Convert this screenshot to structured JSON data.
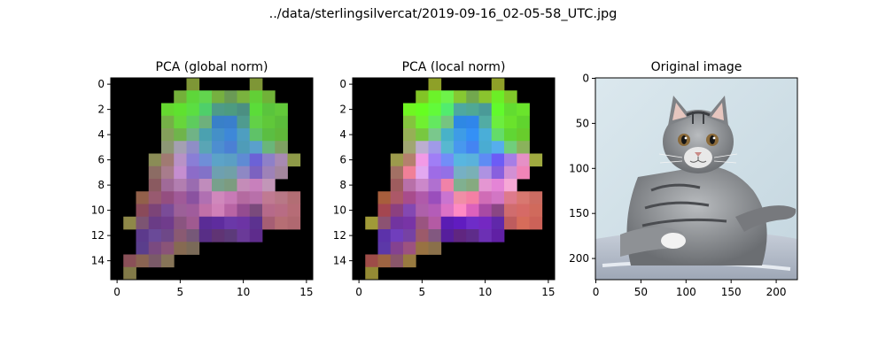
{
  "figure": {
    "suptitle": "../data/sterlingsilvercat/2019-09-16_02-05-58_UTC.jpg"
  },
  "chart_data": [
    {
      "type": "heatmap",
      "title": "PCA (global norm)",
      "xlabel": "",
      "ylabel": "",
      "xlim": [
        -0.5,
        15.5
      ],
      "ylim": [
        15.5,
        -0.5
      ],
      "xticks": [
        0,
        5,
        10,
        15
      ],
      "yticks": [
        0,
        2,
        4,
        6,
        8,
        10,
        12,
        14
      ],
      "grid": false,
      "background": "#000000",
      "rows": [
        [
          "#000000",
          "#000000",
          "#000000",
          "#000000",
          "#000000",
          "#000000",
          "#7e9636",
          "#000000",
          "#000000",
          "#000000",
          "#000000",
          "#7e9636",
          "#000000",
          "#000000",
          "#000000",
          "#000000"
        ],
        [
          "#000000",
          "#000000",
          "#000000",
          "#000000",
          "#000000",
          "#74b03a",
          "#5ed63a",
          "#62d54e",
          "#76b040",
          "#6a9a55",
          "#7ab33e",
          "#62cf36",
          "#70b238",
          "#000000",
          "#000000",
          "#000000"
        ],
        [
          "#000000",
          "#000000",
          "#000000",
          "#000000",
          "#65d830",
          "#5fe12f",
          "#5bde42",
          "#4fcf6a",
          "#4e9b88",
          "#4d9b80",
          "#4b8f82",
          "#5bdc39",
          "#5ac43d",
          "#62c93a",
          "#000000",
          "#000000"
        ],
        [
          "#000000",
          "#000000",
          "#000000",
          "#000000",
          "#75b047",
          "#67d63b",
          "#5ecc5e",
          "#6eb07c",
          "#3980c8",
          "#3a7fcc",
          "#4f9b8f",
          "#62d147",
          "#60c83a",
          "#5bbd3b",
          "#000000",
          "#000000"
        ],
        [
          "#000000",
          "#000000",
          "#000000",
          "#000000",
          "#84a05b",
          "#6fb44b",
          "#70b386",
          "#4ba1b0",
          "#4490c8",
          "#3e88d8",
          "#4e9ec0",
          "#5fc268",
          "#5bbe42",
          "#60b83a",
          "#000000",
          "#000000"
        ],
        [
          "#000000",
          "#000000",
          "#000000",
          "#000000",
          "#8d9775",
          "#a4a0b2",
          "#8f8ec6",
          "#5aa5b5",
          "#4d8ed0",
          "#4b80d4",
          "#4f9cb8",
          "#5aa0cc",
          "#6ab67a",
          "#7ea062",
          "#000000",
          "#000000"
        ],
        [
          "#000000",
          "#000000",
          "#000000",
          "#8a8c56",
          "#a07a72",
          "#b892c6",
          "#8a7ed6",
          "#6f8ed8",
          "#5ca3c8",
          "#5b9fc4",
          "#5f8bd4",
          "#6c62d6",
          "#8e80c8",
          "#a88ab2",
          "#8e9a48",
          "#000000"
        ],
        [
          "#000000",
          "#000000",
          "#000000",
          "#8c6c64",
          "#a87c8c",
          "#c58ed0",
          "#8c6cc8",
          "#8272c8",
          "#6ea0b0",
          "#71a0a8",
          "#8e88c4",
          "#7c62c0",
          "#9e82b8",
          "#a4869e",
          "#000000",
          "#000000"
        ],
        [
          "#000000",
          "#000000",
          "#000000",
          "#8a5a60",
          "#a06a98",
          "#b27eb0",
          "#9a6cb0",
          "#c08cbc",
          "#78a08c",
          "#7c9c80",
          "#c48cb8",
          "#c880bc",
          "#c296b8",
          "#000000",
          "#000000",
          "#000000"
        ],
        [
          "#000000",
          "#000000",
          "#92604a",
          "#985a70",
          "#944e80",
          "#a05a98",
          "#8a52a0",
          "#b070b2",
          "#d088bc",
          "#c87ab6",
          "#b46aa0",
          "#b870aa",
          "#c07a92",
          "#b87886",
          "#b26e74",
          "#000000"
        ],
        [
          "#000000",
          "#000000",
          "#8a4a5a",
          "#7c4478",
          "#7a4c98",
          "#9c6098",
          "#a05c9c",
          "#c070a8",
          "#d080b8",
          "#b864a4",
          "#944c90",
          "#7a4a7c",
          "#b66a8a",
          "#b86c84",
          "#b66c76",
          "#000000"
        ],
        [
          "#000000",
          "#8e8848",
          "#7c5472",
          "#6a3c86",
          "#703c8c",
          "#8a5480",
          "#a05a90",
          "#5a2c96",
          "#5e2c9e",
          "#6a38a8",
          "#6c34a4",
          "#5c3290",
          "#a65e74",
          "#b66e74",
          "#b06870",
          "#000000"
        ],
        [
          "#000000",
          "#000000",
          "#5c3a8c",
          "#6a4a98",
          "#6e4888",
          "#8a5a72",
          "#765878",
          "#582e86",
          "#603474",
          "#5c3a7a",
          "#6a3a98",
          "#5e2c8c",
          "#000000",
          "#000000",
          "#000000",
          "#000000"
        ],
        [
          "#000000",
          "#000000",
          "#5a3e8c",
          "#7a4a80",
          "#8a5478",
          "#866a52",
          "#7a6a58",
          "#000000",
          "#000000",
          "#000000",
          "#000000",
          "#000000",
          "#000000",
          "#000000",
          "#000000",
          "#000000"
        ],
        [
          "#000000",
          "#8a5058",
          "#8a6452",
          "#7a5a68",
          "#867458",
          "#000000",
          "#000000",
          "#000000",
          "#000000",
          "#000000",
          "#000000",
          "#000000",
          "#000000",
          "#000000",
          "#000000",
          "#000000"
        ],
        [
          "#000000",
          "#827a48",
          "#000000",
          "#000000",
          "#000000",
          "#000000",
          "#000000",
          "#000000",
          "#000000",
          "#000000",
          "#000000",
          "#000000",
          "#000000",
          "#000000",
          "#000000",
          "#000000"
        ]
      ]
    },
    {
      "type": "heatmap",
      "title": "PCA (local norm)",
      "xlabel": "",
      "ylabel": "",
      "xlim": [
        -0.5,
        15.5
      ],
      "ylim": [
        15.5,
        -0.5
      ],
      "xticks": [
        0,
        5,
        10,
        15
      ],
      "yticks": [
        0,
        2,
        4,
        6,
        8,
        10,
        12,
        14
      ],
      "grid": false,
      "background": "#000000",
      "rows": [
        [
          "#000000",
          "#000000",
          "#000000",
          "#000000",
          "#000000",
          "#000000",
          "#8ea028",
          "#000000",
          "#000000",
          "#000000",
          "#000000",
          "#8ea028",
          "#000000",
          "#000000",
          "#000000",
          "#000000"
        ],
        [
          "#000000",
          "#000000",
          "#000000",
          "#000000",
          "#000000",
          "#82c426",
          "#6cf22a",
          "#6ef24a",
          "#86c832",
          "#72a84e",
          "#8ac42e",
          "#6cee26",
          "#80c82a",
          "#000000",
          "#000000",
          "#000000"
        ],
        [
          "#000000",
          "#000000",
          "#000000",
          "#000000",
          "#70f622",
          "#66fe20",
          "#62fa3a",
          "#52ec6e",
          "#4ea8a0",
          "#50a894",
          "#4a9a98",
          "#62fa2c",
          "#62dc30",
          "#6ae42c",
          "#000000",
          "#000000"
        ],
        [
          "#000000",
          "#000000",
          "#000000",
          "#000000",
          "#84c43e",
          "#70f030",
          "#64e860",
          "#76c480",
          "#2e88e4",
          "#3086ea",
          "#52aca4",
          "#6cee3e",
          "#6ae22c",
          "#60d42e",
          "#000000",
          "#000000"
        ],
        [
          "#000000",
          "#000000",
          "#000000",
          "#000000",
          "#96b056",
          "#78c840",
          "#7ac88c",
          "#48b2c8",
          "#3e9ce6",
          "#3490f6",
          "#4aaed8",
          "#64dc6a",
          "#60d634",
          "#68cc2c",
          "#000000",
          "#000000"
        ],
        [
          "#000000",
          "#000000",
          "#000000",
          "#000000",
          "#a0a672",
          "#bcaed0",
          "#a09ae8",
          "#58b8d0",
          "#4898ee",
          "#4484f2",
          "#4aacd2",
          "#56aeec",
          "#70ce7c",
          "#8ab25c",
          "#000000",
          "#000000"
        ],
        [
          "#000000",
          "#000000",
          "#000000",
          "#9c9a4c",
          "#b4806e",
          "#f29ae6",
          "#a07ef6",
          "#728ef8",
          "#58b6e0",
          "#5ab2dc",
          "#5e8cf4",
          "#6c5cf6",
          "#a67ee6",
          "#e690c6",
          "#a0aa40",
          "#000000"
        ],
        [
          "#000000",
          "#000000",
          "#000000",
          "#a27064",
          "#f08098",
          "#e2a8f0",
          "#9e6ce6",
          "#9470e6",
          "#76b0c4",
          "#7ab0b6",
          "#ae92e2",
          "#8860de",
          "#d290d4",
          "#f084b8",
          "#000000",
          "#000000"
        ],
        [
          "#000000",
          "#000000",
          "#000000",
          "#9e5c5e",
          "#b870a8",
          "#cc88ca",
          "#b070d0",
          "#f082a8",
          "#80b090",
          "#86aa80",
          "#e496d2",
          "#e484d6",
          "#f6a8d6",
          "#000000",
          "#000000",
          "#000000"
        ],
        [
          "#000000",
          "#000000",
          "#a85e3c",
          "#ac5868",
          "#a84c8c",
          "#b05aaa",
          "#9a4ebc",
          "#ca74d0",
          "#f08ea6",
          "#f480a4",
          "#d06cb6",
          "#d276c4",
          "#de7a8c",
          "#d87870",
          "#cc6c62",
          "#000000"
        ],
        [
          "#000000",
          "#000000",
          "#a44650",
          "#8c4080",
          "#8448b2",
          "#ae60aa",
          "#b45cb8",
          "#dc72c6",
          "#fe8ac4",
          "#dc62bc",
          "#a84aa4",
          "#8a4684",
          "#d06c6e",
          "#d66a66",
          "#d06a5c",
          "#000000"
        ],
        [
          "#000000",
          "#a09a38",
          "#8c5272",
          "#7234a0",
          "#7834a6",
          "#9a5480",
          "#b45aa4",
          "#5a1cb4",
          "#601cc0",
          "#6e2cc8",
          "#7428c2",
          "#6028aa",
          "#be5c5e",
          "#d66c5a",
          "#cc6258",
          "#000000"
        ],
        [
          "#000000",
          "#000000",
          "#5c32aa",
          "#703ebc",
          "#7642a4",
          "#9c5a6a",
          "#825880",
          "#561e9c",
          "#602680",
          "#5e2c8a",
          "#6c30b4",
          "#6020a4",
          "#000000",
          "#000000",
          "#000000",
          "#000000"
        ],
        [
          "#000000",
          "#000000",
          "#5c38a8",
          "#844290",
          "#9c5280",
          "#987242",
          "#8a704a",
          "#000000",
          "#000000",
          "#000000",
          "#000000",
          "#000000",
          "#000000",
          "#000000",
          "#000000",
          "#000000"
        ],
        [
          "#000000",
          "#9e4c48",
          "#9e6442",
          "#8a566a",
          "#987a40",
          "#000000",
          "#000000",
          "#000000",
          "#000000",
          "#000000",
          "#000000",
          "#000000",
          "#000000",
          "#000000",
          "#000000",
          "#000000"
        ],
        [
          "#000000",
          "#948a34",
          "#000000",
          "#000000",
          "#000000",
          "#000000",
          "#000000",
          "#000000",
          "#000000",
          "#000000",
          "#000000",
          "#000000",
          "#000000",
          "#000000",
          "#000000",
          "#000000"
        ]
      ]
    },
    {
      "type": "image",
      "title": "Original image",
      "xlabel": "",
      "ylabel": "",
      "xlim": [
        -0.5,
        223.5
      ],
      "ylim": [
        223.5,
        -0.5
      ],
      "xticks": [
        0,
        50,
        100,
        150,
        200
      ],
      "yticks": [
        0,
        50,
        100,
        150,
        200
      ],
      "grid": false,
      "background": "#cfe0e8",
      "subject": "tabby kitten"
    }
  ]
}
